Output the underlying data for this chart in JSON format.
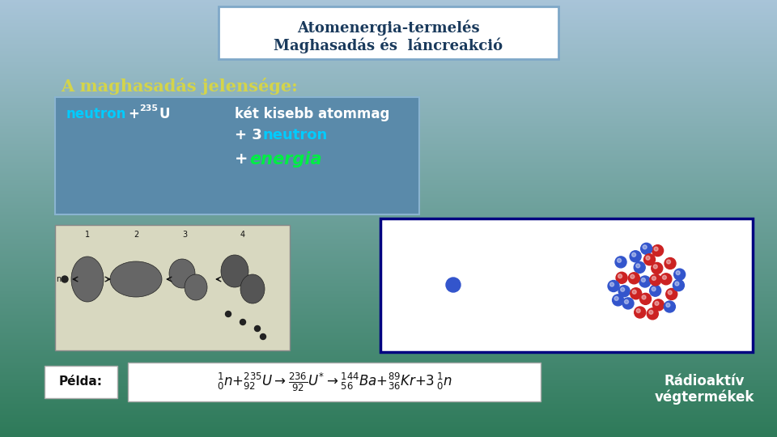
{
  "bg_color_top": "#a8c4d8",
  "bg_color_bottom": "#2d7a5a",
  "title_box_text1": "Atomenergia-termelés",
  "title_box_text2": "Maghasadás és  láncreakció",
  "title_text_color": "#1a3a5c",
  "title_box_bg": "#ffffff",
  "title_box_border": "#7fa8c8",
  "section_title": "A maghasadás jelensége:",
  "section_title_color": "#d4d44a",
  "reaction_box_bg": "#5a8aaa",
  "left_side_color": "#00ccff",
  "right_text1": "két kisebb atommag",
  "right_text1_color": "#ffffff",
  "right_text2_neutron_color": "#00ccff",
  "energia_color": "#00ee44",
  "pelda_label": "Példa:",
  "radioaktiv_text1": "Rádioaktív",
  "radioaktiv_text2": "végtermékek",
  "radioaktiv_color": "#ffffff"
}
